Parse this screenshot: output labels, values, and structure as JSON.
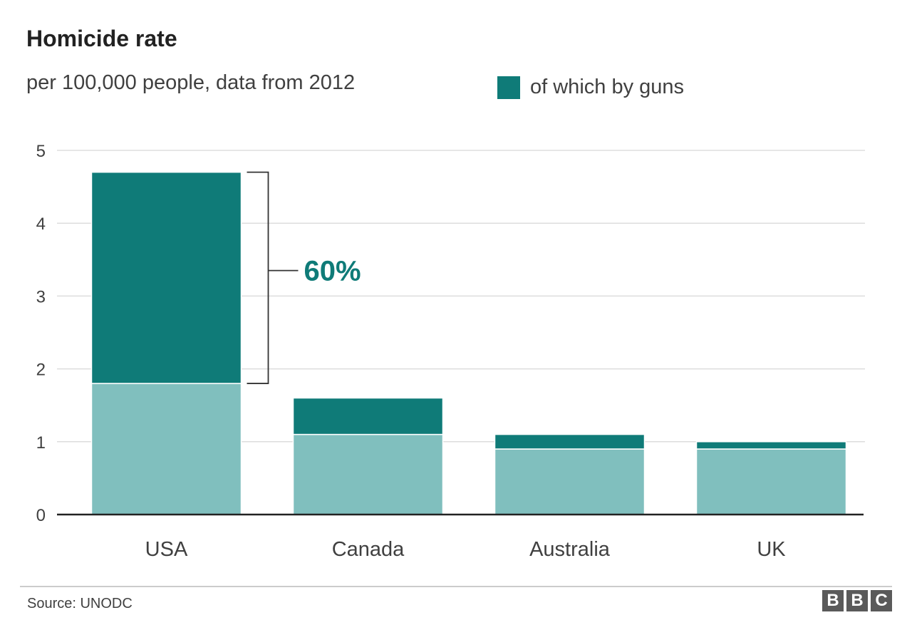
{
  "chart_data": {
    "type": "bar",
    "stacked": true,
    "title": "Homicide rate",
    "subtitle": "per 100,000 people, data from 2012",
    "categories": [
      "USA",
      "Canada",
      "Australia",
      "UK"
    ],
    "series": [
      {
        "values": [
          1.8,
          1.1,
          0.9,
          0.9
        ],
        "color": "#80bfbe"
      },
      {
        "name": "of which by guns",
        "values": [
          2.9,
          0.5,
          0.2,
          0.1
        ],
        "color": "#0f7b78"
      }
    ],
    "totals": [
      4.7,
      1.6,
      1.1,
      1.0
    ],
    "ylim": [
      0,
      5
    ],
    "yticks": [
      "0",
      "1",
      "2",
      "3",
      "4",
      "5"
    ],
    "xlabel": "",
    "ylabel": "",
    "grid": true,
    "legend": {
      "label": "of which by guns",
      "placement": "top-right"
    },
    "annotation": {
      "text": "60%",
      "category": "USA",
      "color": "#0f7b78"
    }
  },
  "footer": {
    "source": "Source: UNODC",
    "logo_letters": [
      "B",
      "B",
      "C"
    ]
  }
}
